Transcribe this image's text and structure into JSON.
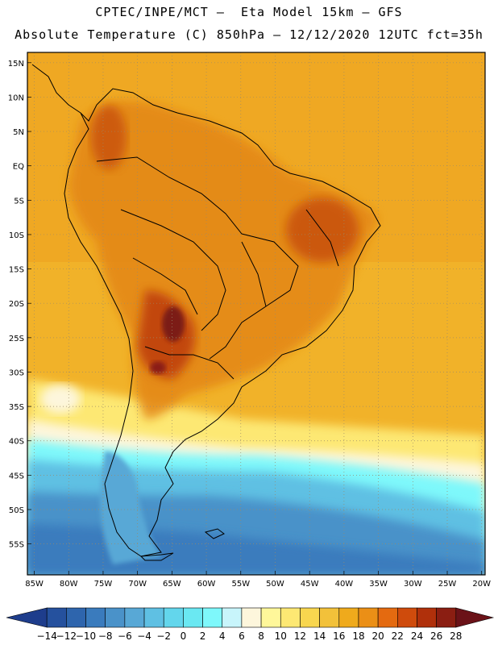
{
  "header": {
    "line1": "CPTEC/INPE/MCT –  Eta Model 15km – GFS",
    "line2": "Absolute Temperature (C) 850hPa – 12/12/2020 12UTC fct=35h"
  },
  "map": {
    "lat_ticks": [
      "15N",
      "10N",
      "5N",
      "EQ",
      "5S",
      "10S",
      "15S",
      "20S",
      "25S",
      "30S",
      "35S",
      "40S",
      "45S",
      "50S",
      "55S"
    ],
    "lon_ticks": [
      "85W",
      "80W",
      "75W",
      "70W",
      "65W",
      "60W",
      "55W",
      "50W",
      "45W",
      "40W",
      "35W",
      "30W",
      "25W",
      "20W"
    ]
  },
  "colorbar": {
    "labels": [
      "-14",
      "-12",
      "-10",
      "-8",
      "-6",
      "-4",
      "-2",
      "0",
      "2",
      "4",
      "6",
      "8",
      "10",
      "12",
      "14",
      "16",
      "18",
      "20",
      "22",
      "24",
      "26",
      "28"
    ],
    "colors": [
      "#1e3d8c",
      "#25519e",
      "#2e65ad",
      "#3a7bbd",
      "#4a92c9",
      "#58a8d6",
      "#5fc0e3",
      "#63d6ec",
      "#6ae8f2",
      "#7ef8fb",
      "#c8f5fb",
      "#fdf6dc",
      "#fff79a",
      "#fde873",
      "#f8d64f",
      "#f2c13a",
      "#efaa1c",
      "#eb8f16",
      "#e46a10",
      "#cf4b0c",
      "#b0300b",
      "#8b1e12",
      "#6b1218"
    ]
  },
  "palette": {
    "ocean_warm": "#f1b229",
    "land_hot": "#d66d12",
    "land_very_hot": "#a22c10",
    "cold": "#4fc5df",
    "very_cold": "#2c7fc0",
    "border": "#000000"
  }
}
